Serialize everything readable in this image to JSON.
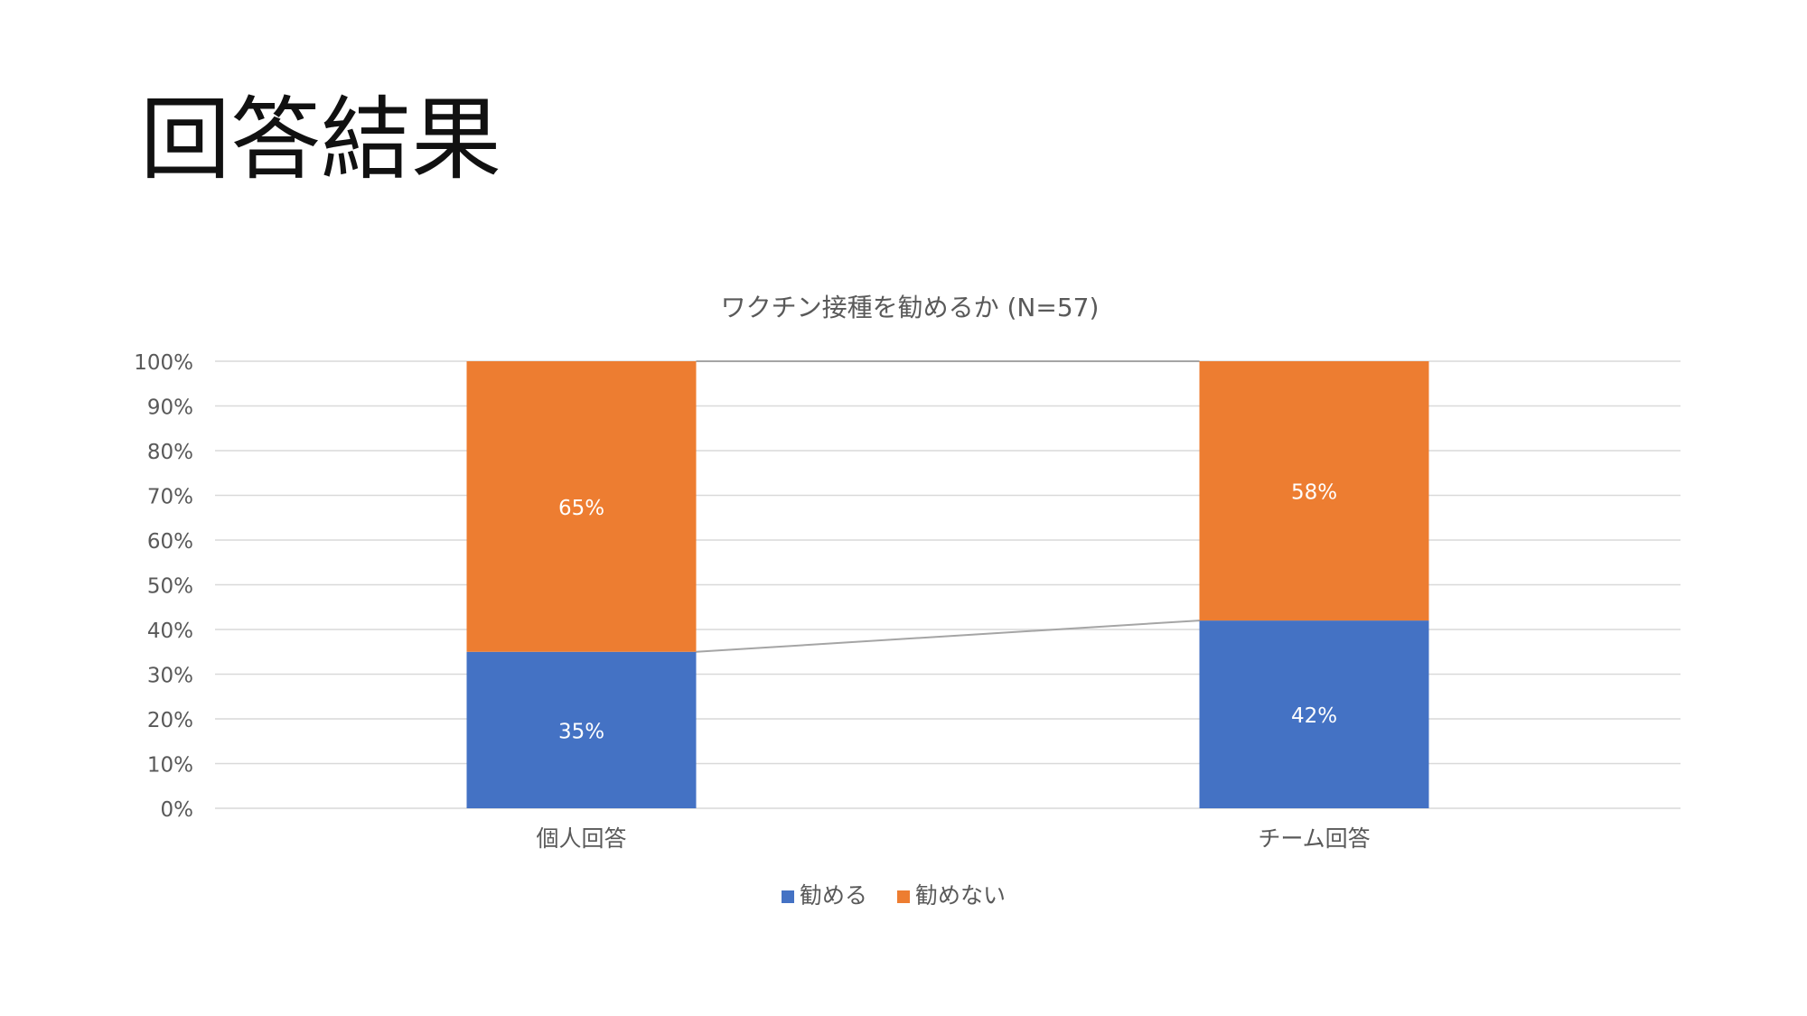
{
  "slide": {
    "title": "回答結果"
  },
  "chart_data": {
    "type": "bar",
    "stacked": true,
    "percent": true,
    "title": "ワクチン接種を勧めるか (N=57)",
    "categories": [
      "個人回答",
      "チーム回答"
    ],
    "series": [
      {
        "name": "勧める",
        "values": [
          35,
          42
        ],
        "labels": [
          "35%",
          "42%"
        ],
        "color": "#4472C4"
      },
      {
        "name": "勧めない",
        "values": [
          65,
          58
        ],
        "labels": [
          "65%",
          "58%"
        ],
        "color": "#ED7D31"
      }
    ],
    "ylim": [
      0,
      100
    ],
    "yticks": [
      "0%",
      "10%",
      "20%",
      "30%",
      "40%",
      "50%",
      "60%",
      "70%",
      "80%",
      "90%",
      "100%"
    ],
    "grid": true,
    "series_lines": true,
    "legend": "bottom",
    "colors": {
      "grid": "#D9D9D9",
      "axis_text": "#595959",
      "label_text": "#FFFFFF",
      "series_line": "#A5A5A5"
    }
  }
}
